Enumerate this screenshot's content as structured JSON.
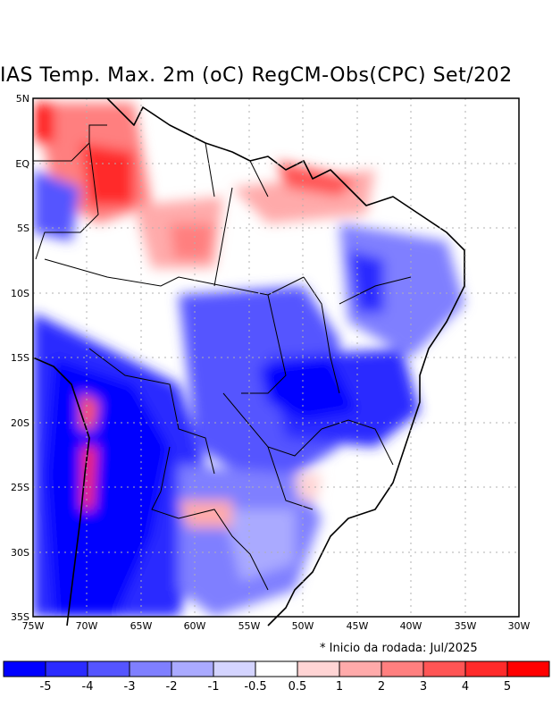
{
  "title": "IAS Temp. Max. 2m (oC) RegCM-Obs(CPC) Set/202",
  "note": "* Inicio da rodada: Jul/2025",
  "lat_labels": [
    "5N",
    "EQ",
    "5S",
    "10S",
    "15S",
    "20S",
    "25S",
    "30S",
    "35S"
  ],
  "lon_labels": [
    "75W",
    "70W",
    "65W",
    "60W",
    "55W",
    "50W",
    "45W",
    "40W",
    "35W",
    "30W"
  ],
  "colorbar": {
    "colors": [
      "#0000ff",
      "#2b2bff",
      "#5555ff",
      "#7f7fff",
      "#aaaaff",
      "#d4d4ff",
      "#ffffff",
      "#ffd4d4",
      "#ffaaaa",
      "#ff7f7f",
      "#ff5555",
      "#ff2b2b",
      "#ff0000"
    ],
    "labels": [
      "-5",
      "-4",
      "-3",
      "-2",
      "-1",
      "-0.5",
      "0.5",
      "1",
      "2",
      "3",
      "4",
      "5"
    ]
  },
  "map_extent": {
    "lon": [
      -75,
      -30
    ],
    "lat": [
      -35,
      5
    ]
  }
}
